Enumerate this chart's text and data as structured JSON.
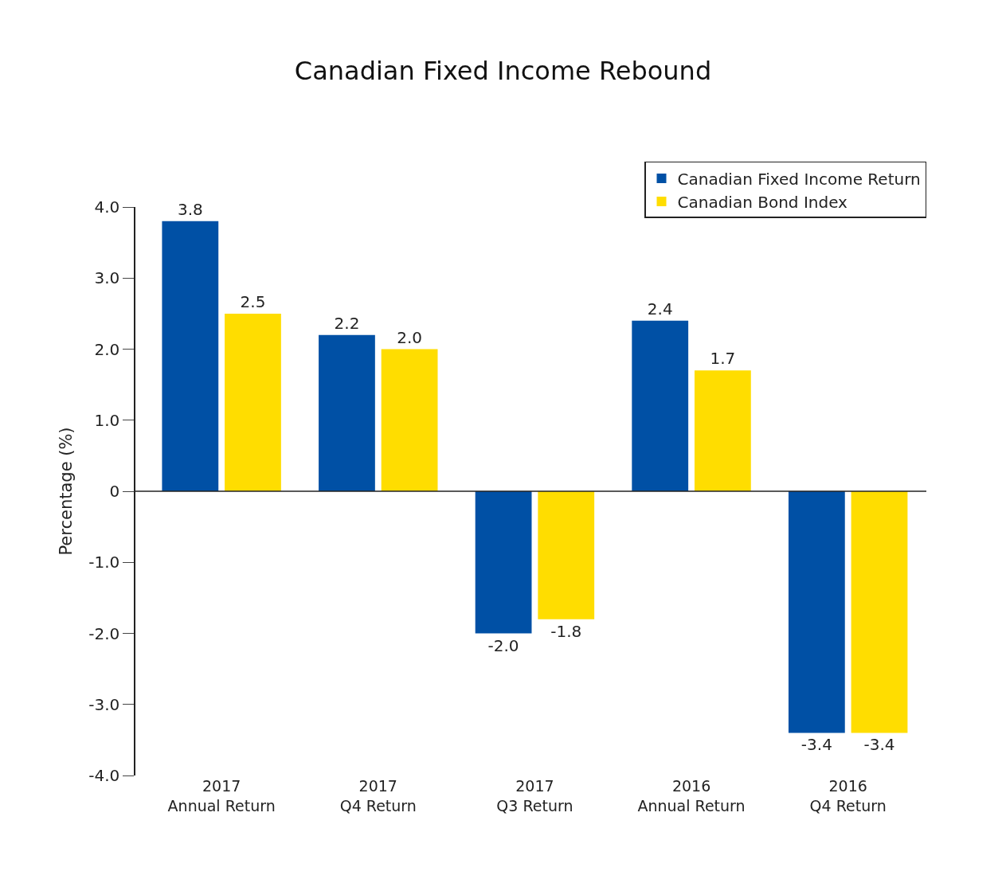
{
  "chart_data": {
    "type": "bar",
    "title": "Canadian Fixed Income Rebound",
    "ylabel": "Percentage (%)",
    "categories": [
      "2017\nAnnual Return",
      "2017\nQ4 Return",
      "2017\nQ3 Return",
      "2016\nAnnual Return",
      "2016\nQ4 Return"
    ],
    "series": [
      {
        "name": "Canadian Fixed Income Return",
        "color": "#0050a5",
        "values": [
          3.8,
          2.2,
          -2.0,
          2.4,
          -3.4
        ],
        "value_labels": [
          "3.8",
          "2.2",
          "-2.0",
          "2.4",
          "-3.4"
        ]
      },
      {
        "name": "Canadian Bond Index",
        "color": "#ffdd00",
        "values": [
          2.5,
          2.0,
          -1.8,
          1.7,
          -3.4
        ],
        "value_labels": [
          "2.5",
          "2.0",
          "-1.8",
          "1.7",
          "-3.4"
        ]
      }
    ],
    "ylim": [
      -4,
      4
    ],
    "yticks": [
      {
        "value": -4,
        "label": "-4.0"
      },
      {
        "value": -3,
        "label": "-3.0"
      },
      {
        "value": -2,
        "label": "-2.0"
      },
      {
        "value": -1,
        "label": "-1.0"
      },
      0,
      {
        "value": 1,
        "label": "1.0"
      },
      {
        "value": 2,
        "label": "2.0"
      },
      {
        "value": 3,
        "label": "3.0"
      },
      {
        "value": 4,
        "label": "4.0"
      }
    ],
    "legend": "top right"
  }
}
